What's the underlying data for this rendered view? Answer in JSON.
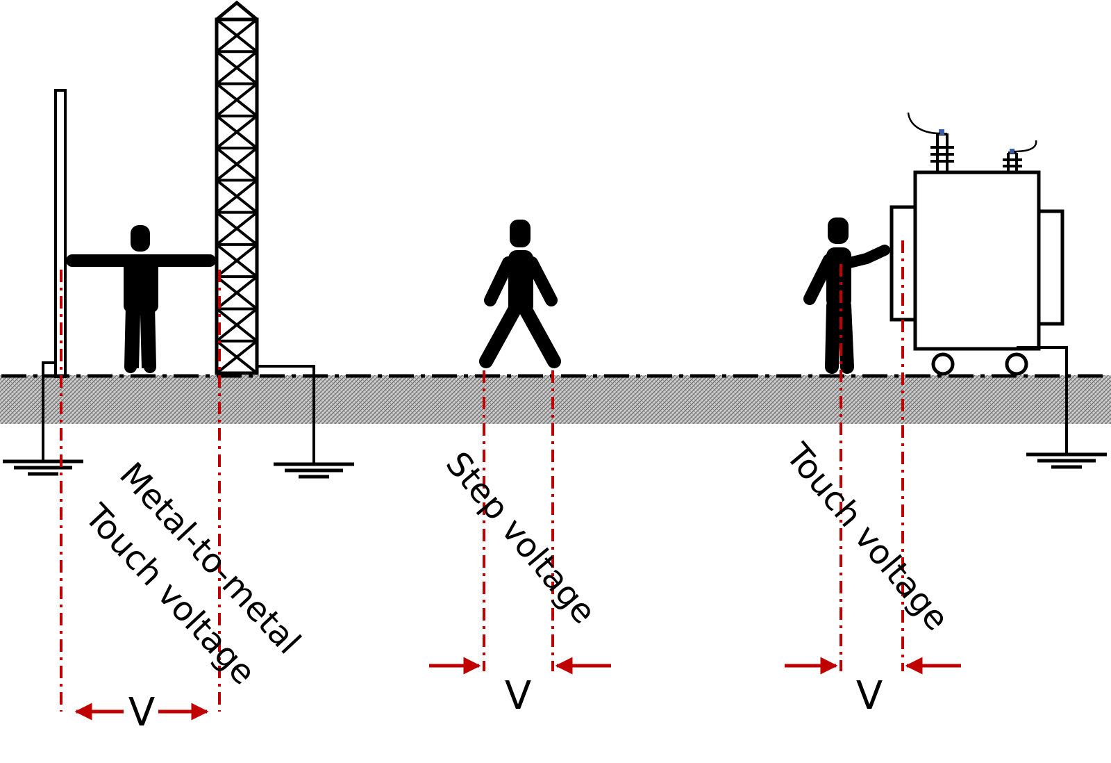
{
  "labels": {
    "metal_to_metal_line1": "Metal-to-metal",
    "metal_to_metal_line2": "Touch voltage",
    "step": "Step voltage",
    "touch": "Touch voltage"
  },
  "voltage_symbol": {
    "left": "V",
    "middle": "V",
    "right": "V"
  },
  "colors": {
    "measure": "#c00000",
    "outline": "#000000",
    "insulator_tip": "#3a5fa8",
    "soil": "#9a9a9a"
  }
}
